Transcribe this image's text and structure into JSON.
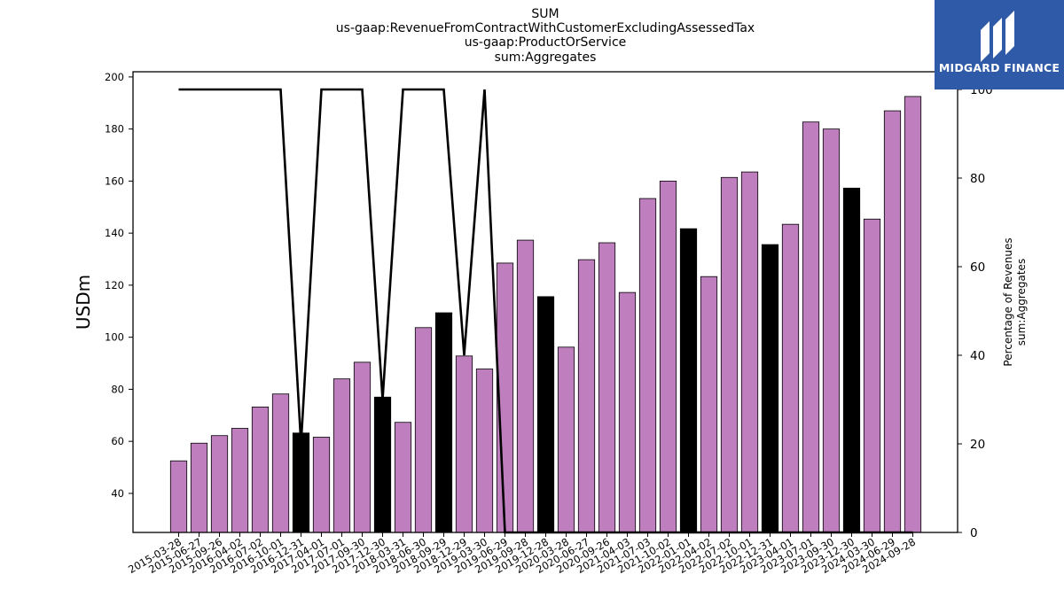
{
  "title_lines": [
    "SUM",
    "us-gaap:RevenueFromContractWithCustomerExcludingAssessedTax",
    "us-gaap:ProductOrService",
    "sum:Aggregates"
  ],
  "logo": {
    "text": "MIDGARD FINANCE",
    "background": "#2f5aa8"
  },
  "chart_data": {
    "type": "bar",
    "ylabel": "USDm",
    "y2label_lines": [
      "Percentage of Revenues",
      "sum:Aggregates"
    ],
    "ylim": [
      25,
      202
    ],
    "y2lim": [
      0,
      104
    ],
    "yticks": [
      40,
      60,
      80,
      100,
      120,
      140,
      160,
      180,
      200
    ],
    "y2ticks": [
      0,
      20,
      40,
      60,
      80,
      100
    ],
    "bar_color": "#bf7fbf",
    "highlight_color": "#000000",
    "line_color": "#000000",
    "categories": [
      "2015-03-28",
      "2015-06-27",
      "2015-09-26",
      "2016-04-02",
      "2016-07-02",
      "2016-10-01",
      "2016-12-31",
      "2017-04-01",
      "2017-07-01",
      "2017-09-30",
      "2017-12-30",
      "2018-03-31",
      "2018-06-30",
      "2018-09-29",
      "2018-12-29",
      "2019-03-30",
      "2019-06-29",
      "2019-09-28",
      "2019-12-28",
      "2020-03-28",
      "2020-06-27",
      "2020-09-26",
      "2021-04-03",
      "2021-07-03",
      "2021-10-02",
      "2022-01-01",
      "2022-04-02",
      "2022-07-02",
      "2022-10-01",
      "2022-12-31",
      "2023-04-01",
      "2023-07-01",
      "2023-09-30",
      "2023-12-30",
      "2024-03-30",
      "2024-06-29",
      "2024-09-28"
    ],
    "values": [
      52.5,
      59.3,
      62.2,
      65.0,
      73.2,
      78.2,
      63.2,
      61.6,
      84.0,
      90.4,
      77.0,
      67.3,
      103.7,
      109.4,
      92.8,
      87.8,
      128.5,
      137.3,
      115.6,
      96.2,
      129.8,
      136.3,
      117.2,
      153.3,
      160.0,
      141.7,
      123.3,
      161.4,
      163.5,
      135.6,
      143.4,
      182.7,
      180.0,
      157.3,
      145.4,
      187.0,
      192.5
    ],
    "highlighted": [
      false,
      false,
      false,
      false,
      false,
      false,
      true,
      false,
      false,
      false,
      true,
      false,
      false,
      true,
      false,
      false,
      false,
      false,
      true,
      false,
      false,
      false,
      false,
      false,
      false,
      true,
      false,
      false,
      false,
      true,
      false,
      false,
      false,
      true,
      false,
      false,
      false
    ],
    "percent": [
      100,
      100,
      100,
      100,
      100,
      100,
      20,
      100,
      100,
      100,
      30,
      100,
      100,
      100,
      40,
      100,
      0,
      0,
      0,
      0,
      0,
      0,
      0,
      0,
      0,
      0,
      0,
      0,
      0,
      0,
      0,
      0,
      0,
      0,
      0,
      0,
      0
    ]
  }
}
